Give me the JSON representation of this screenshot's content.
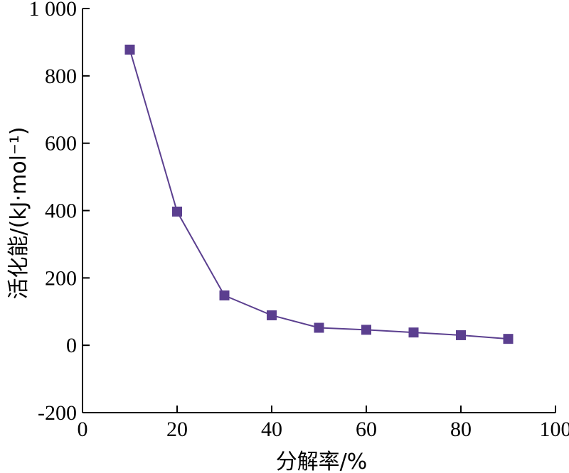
{
  "chart_data": {
    "type": "line",
    "xlabel": "分解率/%",
    "ylabel": "活化能/(kJ·mol⁻¹)",
    "xlim": [
      0,
      100
    ],
    "ylim": [
      -200,
      1000
    ],
    "x_ticks": [
      "0",
      "20",
      "40",
      "60",
      "80",
      "100"
    ],
    "y_ticks": [
      "-200",
      "0",
      "200",
      "400",
      "600",
      "800",
      "1 000"
    ],
    "grid": false,
    "series": [
      {
        "color": "#5b3f8f",
        "marker": "square",
        "x": [
          10,
          20,
          30,
          40,
          50,
          60,
          70,
          80,
          90
        ],
        "y": [
          878,
          397,
          148,
          89,
          52,
          46,
          38,
          30,
          19
        ]
      }
    ]
  }
}
